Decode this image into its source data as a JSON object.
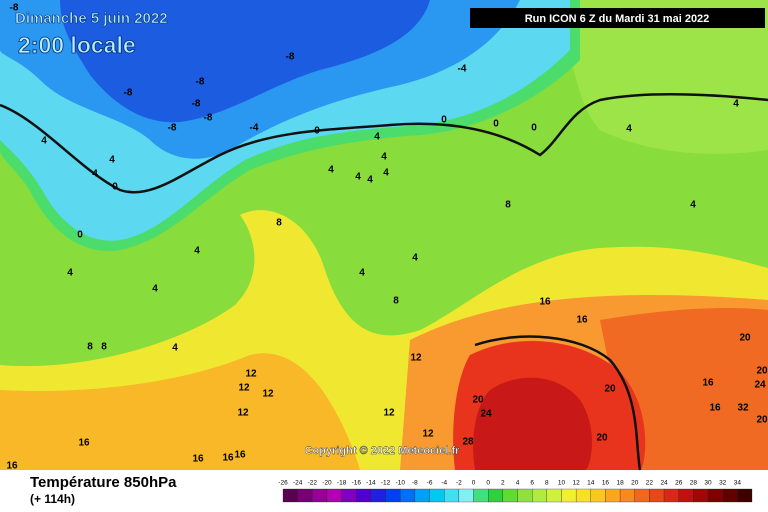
{
  "header": {
    "valid_date": "Dimanche 5 juin 2022",
    "local_time": "2:00 locale",
    "run": "Run ICON 6 Z du Mardi 31 mai 2022"
  },
  "footer": {
    "copyright": "Copyright © 2022 Meteociel.fr"
  },
  "legend": {
    "title": "Température 850hPa",
    "lead": "(+ 114h)",
    "scale_labels": [
      "-26",
      "-24",
      "-22",
      "-20",
      "-18",
      "-16",
      "-14",
      "-12",
      "-10",
      "-8",
      "-6",
      "-4",
      "-2",
      "0",
      "0",
      "2",
      "4",
      "6",
      "8",
      "10",
      "12",
      "14",
      "16",
      "18",
      "20",
      "22",
      "24",
      "26",
      "28",
      "30",
      "32",
      "34"
    ]
  },
  "map": {
    "contour_labels": [
      "-8",
      "-8",
      "-8",
      "-8",
      "-8",
      "-8",
      "-8",
      "-4",
      "-4",
      "0",
      "0",
      "0",
      "0",
      "0",
      "0",
      "4",
      "4",
      "4",
      "4",
      "4",
      "4",
      "4",
      "4",
      "4",
      "4",
      "4",
      "4",
      "4",
      "4",
      "4",
      "4",
      "4",
      "4",
      "8",
      "8",
      "8",
      "8",
      "8",
      "12",
      "12",
      "12",
      "12",
      "12",
      "12",
      "12",
      "16",
      "16",
      "16",
      "16",
      "16",
      "16",
      "16",
      "16",
      "16",
      "20",
      "20",
      "20",
      "20",
      "20",
      "20",
      "24",
      "24",
      "28",
      "32"
    ]
  }
}
